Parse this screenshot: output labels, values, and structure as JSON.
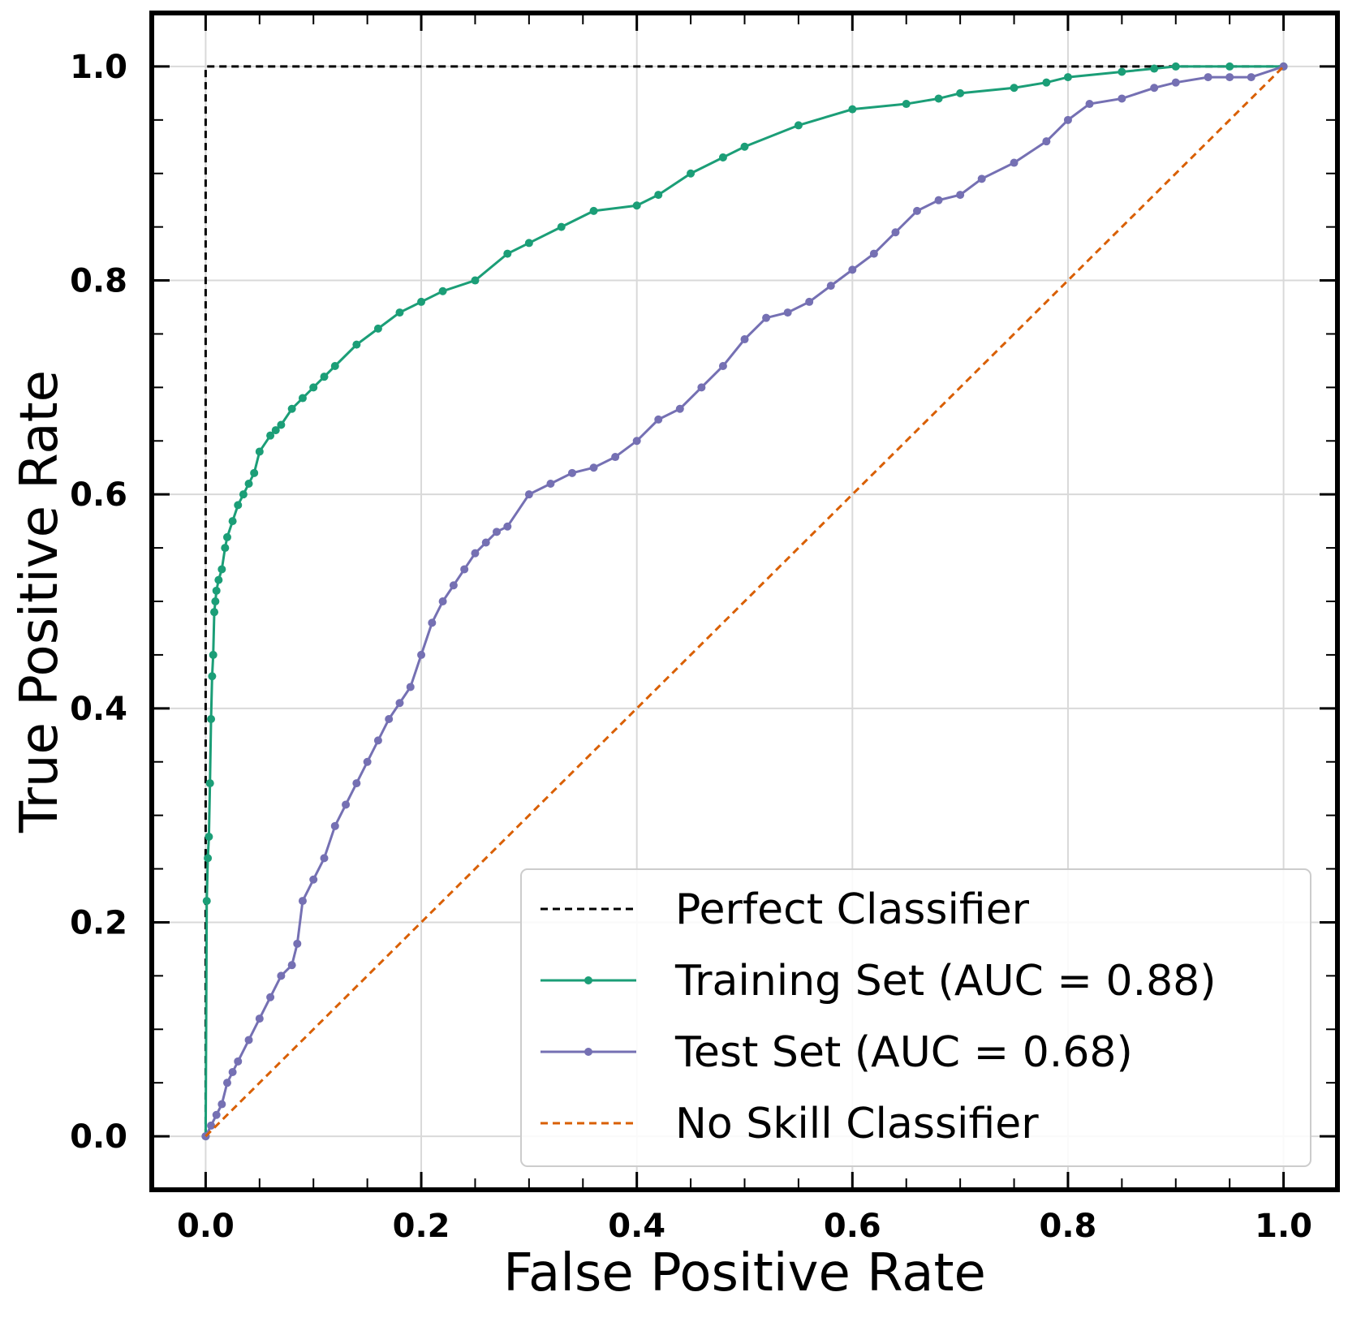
{
  "chart_data": {
    "type": "line",
    "title": "",
    "xlabel": "False Positive Rate",
    "ylabel": "True Positive Rate",
    "xlim": [
      -0.05,
      1.05
    ],
    "ylim": [
      -0.05,
      1.05
    ],
    "grid": true,
    "legend_position": "lower-right",
    "x_ticks": [
      "0.0",
      "0.2",
      "0.4",
      "0.6",
      "0.8",
      "1.0"
    ],
    "y_ticks": [
      "0.0",
      "0.2",
      "0.4",
      "0.6",
      "0.8",
      "1.0"
    ],
    "colors": {
      "perfect": "#000000",
      "training": "#1b9e77",
      "test": "#7570b3",
      "noskill": "#d95f02",
      "grid": "#d9d9d9"
    },
    "series": [
      {
        "name": "Perfect Classifier",
        "style": "dashed",
        "x": [
          0,
          0,
          1
        ],
        "y": [
          0,
          1,
          1
        ]
      },
      {
        "name": "Training Set (AUC = 0.88)",
        "style": "solid-marker",
        "x": [
          0,
          0.001,
          0.002,
          0.003,
          0.004,
          0.005,
          0.006,
          0.007,
          0.008,
          0.009,
          0.01,
          0.012,
          0.015,
          0.018,
          0.02,
          0.025,
          0.03,
          0.035,
          0.04,
          0.045,
          0.05,
          0.06,
          0.065,
          0.07,
          0.08,
          0.09,
          0.1,
          0.11,
          0.12,
          0.14,
          0.16,
          0.18,
          0.2,
          0.22,
          0.25,
          0.28,
          0.3,
          0.33,
          0.36,
          0.4,
          0.42,
          0.45,
          0.48,
          0.5,
          0.55,
          0.6,
          0.65,
          0.68,
          0.7,
          0.75,
          0.78,
          0.8,
          0.85,
          0.88,
          0.9,
          0.95,
          1.0
        ],
        "y": [
          0,
          0.22,
          0.26,
          0.28,
          0.33,
          0.39,
          0.43,
          0.45,
          0.49,
          0.5,
          0.51,
          0.52,
          0.53,
          0.55,
          0.56,
          0.575,
          0.59,
          0.6,
          0.61,
          0.62,
          0.64,
          0.655,
          0.66,
          0.665,
          0.68,
          0.69,
          0.7,
          0.71,
          0.72,
          0.74,
          0.755,
          0.77,
          0.78,
          0.79,
          0.8,
          0.825,
          0.835,
          0.85,
          0.865,
          0.87,
          0.88,
          0.9,
          0.915,
          0.925,
          0.945,
          0.96,
          0.965,
          0.97,
          0.975,
          0.98,
          0.985,
          0.99,
          0.995,
          0.998,
          1.0,
          1.0,
          1.0
        ]
      },
      {
        "name": "Test Set (AUC = 0.68)",
        "style": "solid-marker",
        "x": [
          0,
          0.005,
          0.01,
          0.015,
          0.02,
          0.025,
          0.03,
          0.04,
          0.05,
          0.06,
          0.07,
          0.08,
          0.085,
          0.09,
          0.1,
          0.11,
          0.12,
          0.13,
          0.14,
          0.15,
          0.16,
          0.17,
          0.18,
          0.19,
          0.2,
          0.21,
          0.22,
          0.23,
          0.24,
          0.25,
          0.26,
          0.27,
          0.28,
          0.3,
          0.32,
          0.34,
          0.36,
          0.38,
          0.4,
          0.42,
          0.44,
          0.46,
          0.48,
          0.5,
          0.52,
          0.54,
          0.56,
          0.58,
          0.6,
          0.62,
          0.64,
          0.66,
          0.68,
          0.7,
          0.72,
          0.75,
          0.78,
          0.8,
          0.82,
          0.85,
          0.88,
          0.9,
          0.93,
          0.95,
          0.97,
          1.0
        ],
        "y": [
          0,
          0.01,
          0.02,
          0.03,
          0.05,
          0.06,
          0.07,
          0.09,
          0.11,
          0.13,
          0.15,
          0.16,
          0.18,
          0.22,
          0.24,
          0.26,
          0.29,
          0.31,
          0.33,
          0.35,
          0.37,
          0.39,
          0.405,
          0.42,
          0.45,
          0.48,
          0.5,
          0.515,
          0.53,
          0.545,
          0.555,
          0.565,
          0.57,
          0.6,
          0.61,
          0.62,
          0.625,
          0.635,
          0.65,
          0.67,
          0.68,
          0.7,
          0.72,
          0.745,
          0.765,
          0.77,
          0.78,
          0.795,
          0.81,
          0.825,
          0.845,
          0.865,
          0.875,
          0.88,
          0.895,
          0.91,
          0.93,
          0.95,
          0.965,
          0.97,
          0.98,
          0.985,
          0.99,
          0.99,
          0.99,
          1.0
        ]
      },
      {
        "name": "No Skill Classifier",
        "style": "dashed",
        "x": [
          0,
          1
        ],
        "y": [
          0,
          1
        ]
      }
    ]
  }
}
